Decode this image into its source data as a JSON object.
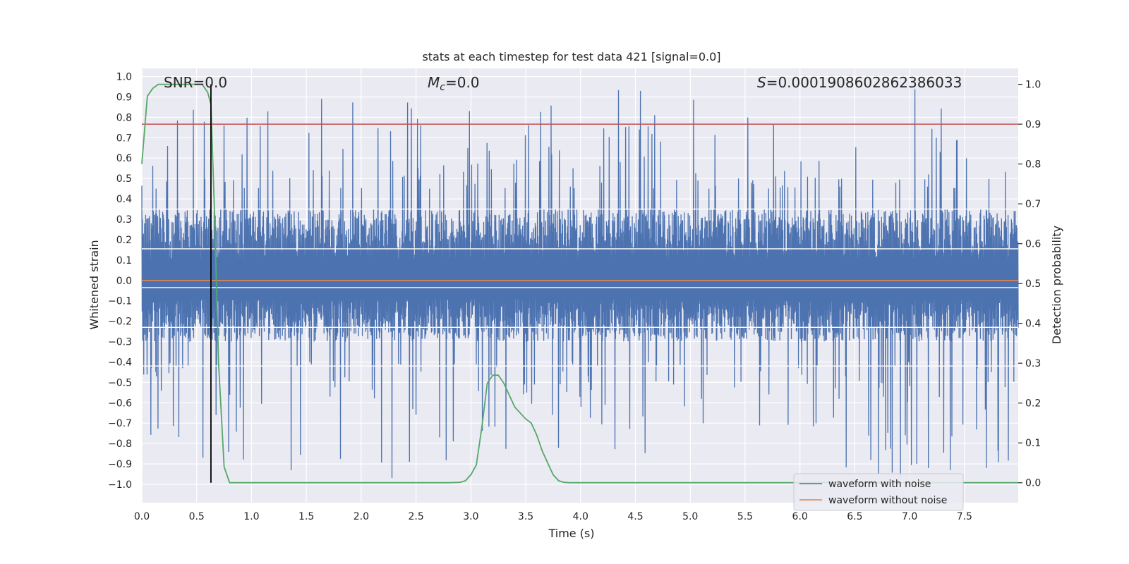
{
  "chart_data": {
    "type": "line",
    "title": "stats at each timestep for test data 421 [signal=0.0]",
    "xlabel": "Time (s)",
    "ylabel": "Whitened strain",
    "ylabel_right": "Detection probability",
    "xlim": [
      0.0,
      7.99
    ],
    "ylim": [
      -1.09,
      1.04
    ],
    "ylim_right": [
      -0.05,
      1.04
    ],
    "xticks": [
      "0.0",
      "0.5",
      "1.0",
      "1.5",
      "2.0",
      "2.5",
      "3.0",
      "3.5",
      "4.0",
      "4.5",
      "5.0",
      "5.5",
      "6.0",
      "6.5",
      "7.0",
      "7.5"
    ],
    "xtick_values": [
      0.0,
      0.5,
      1.0,
      1.5,
      2.0,
      2.5,
      3.0,
      3.5,
      4.0,
      4.5,
      5.0,
      5.5,
      6.0,
      6.5,
      7.0,
      7.5
    ],
    "yticks_left": [
      "−1.0",
      "−0.9",
      "−0.8",
      "−0.7",
      "−0.6",
      "−0.5",
      "−0.4",
      "−0.3",
      "−0.2",
      "−0.1",
      "0.0",
      "0.1",
      "0.2",
      "0.3",
      "0.4",
      "0.5",
      "0.6",
      "0.7",
      "0.8",
      "0.9",
      "1.0"
    ],
    "ytick_left_values": [
      -1.0,
      -0.9,
      -0.8,
      -0.7,
      -0.6,
      -0.5,
      -0.4,
      -0.3,
      -0.2,
      -0.1,
      0.0,
      0.1,
      0.2,
      0.3,
      0.4,
      0.5,
      0.6,
      0.7,
      0.8,
      0.9,
      1.0
    ],
    "yticks_right": [
      "0.0",
      "0.1",
      "0.2",
      "0.3",
      "0.4",
      "0.5",
      "0.6",
      "0.7",
      "0.8",
      "0.9",
      "1.0"
    ],
    "ytick_right_values": [
      0.0,
      0.1,
      0.2,
      0.3,
      0.4,
      0.5,
      0.6,
      0.7,
      0.8,
      0.9,
      1.0
    ],
    "annotations": {
      "snr": "SNR=0.0",
      "mc_symbol": "M",
      "mc_sub": "c",
      "mc_rest": "=0.0",
      "s_symbol": "S",
      "s_rest": "=0.0001908602862386033"
    },
    "legend": {
      "placement": "lower-right",
      "entries": [
        "waveform with noise",
        "waveform without noise"
      ]
    },
    "series": [
      {
        "name": "waveform with noise",
        "axis": "left",
        "color": "#4c72b0",
        "style": "dense noise",
        "band_upper": 0.35,
        "band_lower": -0.3,
        "peak_max": 0.94,
        "trough_min": -1.0
      },
      {
        "name": "waveform without noise",
        "axis": "left",
        "color": "#dd8452",
        "x": [
          0.0,
          7.99
        ],
        "y": [
          0.0,
          0.0
        ]
      },
      {
        "name": "detection probability",
        "axis": "right",
        "color": "#55a868",
        "x": [
          0.0,
          0.05,
          0.1,
          0.15,
          0.2,
          0.3,
          0.4,
          0.5,
          0.55,
          0.6,
          0.63,
          0.66,
          0.7,
          0.75,
          0.8,
          0.85,
          1.0,
          1.5,
          2.0,
          2.5,
          2.8,
          2.9,
          2.95,
          3.0,
          3.05,
          3.1,
          3.15,
          3.2,
          3.25,
          3.3,
          3.35,
          3.4,
          3.5,
          3.55,
          3.6,
          3.65,
          3.7,
          3.75,
          3.8,
          3.85,
          3.9,
          3.95,
          4.0,
          5.0,
          6.0,
          7.0,
          7.99
        ],
        "y": [
          0.8,
          0.97,
          0.99,
          1.0,
          1.0,
          1.0,
          1.0,
          1.0,
          1.0,
          0.98,
          0.95,
          0.7,
          0.3,
          0.04,
          0.0,
          0.0,
          0.0,
          0.0,
          0.0,
          0.0,
          0.0,
          0.001,
          0.005,
          0.02,
          0.045,
          0.14,
          0.25,
          0.27,
          0.27,
          0.25,
          0.22,
          0.19,
          0.16,
          0.15,
          0.12,
          0.08,
          0.05,
          0.02,
          0.005,
          0.001,
          0.0,
          0.0,
          0.0,
          0.0,
          0.0,
          0.0,
          0.0
        ]
      },
      {
        "name": "threshold",
        "axis": "right",
        "color": "#c44e52",
        "x": [
          0.0,
          7.99
        ],
        "y": [
          0.9,
          0.9
        ]
      },
      {
        "name": "marker",
        "axis": "right",
        "color": "#000000",
        "x": [
          0.63,
          0.63
        ],
        "y": [
          0.0,
          1.0
        ]
      }
    ]
  }
}
